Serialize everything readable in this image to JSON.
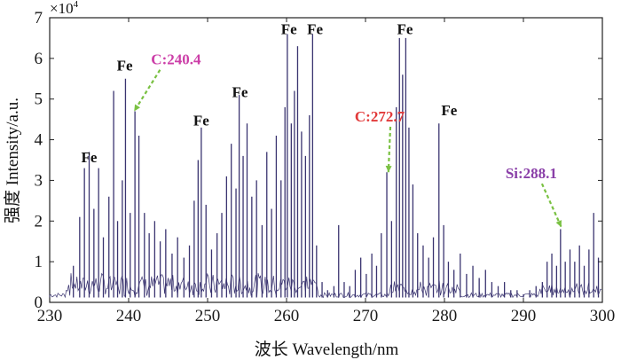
{
  "chart_data": {
    "type": "line",
    "xlabel": "波长 Wavelength/nm",
    "ylabel": "强度 Intensity/a.u.",
    "y_multiplier_label": "×10",
    "y_multiplier_exponent": "4",
    "xlim": [
      230,
      300
    ],
    "ylim": [
      0,
      7
    ],
    "x_ticks": [
      230,
      240,
      250,
      260,
      270,
      280,
      290,
      300
    ],
    "y_ticks": [
      0,
      1,
      2,
      3,
      4,
      5,
      6,
      7
    ],
    "grid": false,
    "line_color": "#3a3470",
    "background_level": 0.12,
    "peaks": [
      {
        "x": 233.0,
        "y": 0.9
      },
      {
        "x": 233.8,
        "y": 2.1
      },
      {
        "x": 234.4,
        "y": 3.3
      },
      {
        "x": 235.0,
        "y": 3.7
      },
      {
        "x": 235.6,
        "y": 2.3
      },
      {
        "x": 236.2,
        "y": 3.3
      },
      {
        "x": 236.8,
        "y": 1.6
      },
      {
        "x": 237.5,
        "y": 2.6
      },
      {
        "x": 238.1,
        "y": 5.2
      },
      {
        "x": 238.6,
        "y": 2.0
      },
      {
        "x": 239.2,
        "y": 3.0
      },
      {
        "x": 239.6,
        "y": 5.5
      },
      {
        "x": 240.2,
        "y": 2.2
      },
      {
        "x": 240.8,
        "y": 4.7
      },
      {
        "x": 241.3,
        "y": 4.1
      },
      {
        "x": 242.0,
        "y": 2.2
      },
      {
        "x": 242.6,
        "y": 1.7
      },
      {
        "x": 243.3,
        "y": 2.0
      },
      {
        "x": 244.0,
        "y": 1.5
      },
      {
        "x": 244.7,
        "y": 1.8
      },
      {
        "x": 245.5,
        "y": 1.2
      },
      {
        "x": 246.2,
        "y": 1.6
      },
      {
        "x": 247.0,
        "y": 1.1
      },
      {
        "x": 247.7,
        "y": 1.4
      },
      {
        "x": 248.3,
        "y": 2.5
      },
      {
        "x": 248.8,
        "y": 3.5
      },
      {
        "x": 249.2,
        "y": 4.3
      },
      {
        "x": 249.8,
        "y": 2.4
      },
      {
        "x": 250.5,
        "y": 1.3
      },
      {
        "x": 251.2,
        "y": 1.7
      },
      {
        "x": 251.8,
        "y": 2.2
      },
      {
        "x": 252.4,
        "y": 3.1
      },
      {
        "x": 253.0,
        "y": 3.9
      },
      {
        "x": 253.6,
        "y": 2.8
      },
      {
        "x": 254.0,
        "y": 5.1
      },
      {
        "x": 254.5,
        "y": 3.6
      },
      {
        "x": 255.0,
        "y": 4.4
      },
      {
        "x": 255.6,
        "y": 2.6
      },
      {
        "x": 256.2,
        "y": 3.0
      },
      {
        "x": 256.9,
        "y": 1.9
      },
      {
        "x": 257.5,
        "y": 3.7
      },
      {
        "x": 258.1,
        "y": 2.3
      },
      {
        "x": 258.7,
        "y": 4.1
      },
      {
        "x": 259.3,
        "y": 3.0
      },
      {
        "x": 259.8,
        "y": 4.8
      },
      {
        "x": 260.1,
        "y": 6.6
      },
      {
        "x": 260.6,
        "y": 4.4
      },
      {
        "x": 261.0,
        "y": 5.2
      },
      {
        "x": 261.4,
        "y": 6.3
      },
      {
        "x": 261.9,
        "y": 4.2
      },
      {
        "x": 262.4,
        "y": 3.6
      },
      {
        "x": 262.9,
        "y": 4.6
      },
      {
        "x": 263.3,
        "y": 6.6
      },
      {
        "x": 263.8,
        "y": 1.4
      },
      {
        "x": 264.5,
        "y": 0.5
      },
      {
        "x": 265.2,
        "y": 0.3
      },
      {
        "x": 266.0,
        "y": 0.4
      },
      {
        "x": 266.6,
        "y": 1.9
      },
      {
        "x": 267.3,
        "y": 0.5
      },
      {
        "x": 268.0,
        "y": 0.4
      },
      {
        "x": 268.7,
        "y": 0.8
      },
      {
        "x": 269.4,
        "y": 1.1
      },
      {
        "x": 270.1,
        "y": 0.7
      },
      {
        "x": 270.8,
        "y": 1.2
      },
      {
        "x": 271.4,
        "y": 0.9
      },
      {
        "x": 272.0,
        "y": 1.7
      },
      {
        "x": 272.7,
        "y": 3.2
      },
      {
        "x": 273.3,
        "y": 2.0
      },
      {
        "x": 273.9,
        "y": 4.8
      },
      {
        "x": 274.3,
        "y": 6.5
      },
      {
        "x": 274.7,
        "y": 5.6
      },
      {
        "x": 275.1,
        "y": 6.5
      },
      {
        "x": 275.5,
        "y": 4.3
      },
      {
        "x": 276.0,
        "y": 2.9
      },
      {
        "x": 276.6,
        "y": 1.7
      },
      {
        "x": 277.3,
        "y": 1.4
      },
      {
        "x": 278.0,
        "y": 1.1
      },
      {
        "x": 278.6,
        "y": 1.6
      },
      {
        "x": 279.3,
        "y": 4.4
      },
      {
        "x": 279.9,
        "y": 1.9
      },
      {
        "x": 280.5,
        "y": 1.0
      },
      {
        "x": 281.2,
        "y": 0.8
      },
      {
        "x": 282.0,
        "y": 1.2
      },
      {
        "x": 282.8,
        "y": 0.7
      },
      {
        "x": 283.6,
        "y": 0.9
      },
      {
        "x": 284.4,
        "y": 0.6
      },
      {
        "x": 285.2,
        "y": 0.8
      },
      {
        "x": 286.0,
        "y": 0.5
      },
      {
        "x": 286.8,
        "y": 0.4
      },
      {
        "x": 287.6,
        "y": 0.5
      },
      {
        "x": 288.4,
        "y": 0.3
      },
      {
        "x": 289.2,
        "y": 0.3
      },
      {
        "x": 290.0,
        "y": 0.2
      },
      {
        "x": 290.8,
        "y": 0.3
      },
      {
        "x": 291.6,
        "y": 0.4
      },
      {
        "x": 292.4,
        "y": 0.5
      },
      {
        "x": 293.0,
        "y": 1.0
      },
      {
        "x": 293.6,
        "y": 1.2
      },
      {
        "x": 294.2,
        "y": 0.9
      },
      {
        "x": 294.7,
        "y": 1.8
      },
      {
        "x": 295.3,
        "y": 1.0
      },
      {
        "x": 295.9,
        "y": 1.3
      },
      {
        "x": 296.5,
        "y": 1.0
      },
      {
        "x": 297.1,
        "y": 1.4
      },
      {
        "x": 297.7,
        "y": 0.9
      },
      {
        "x": 298.3,
        "y": 1.3
      },
      {
        "x": 298.9,
        "y": 2.2
      },
      {
        "x": 299.5,
        "y": 1.1
      }
    ],
    "annotations": [
      {
        "text": "Fe",
        "x": 235.0,
        "y": 3.45,
        "color": "#111111"
      },
      {
        "text": "Fe",
        "x": 239.5,
        "y": 5.7,
        "color": "#111111"
      },
      {
        "text": "C:240.4",
        "x": 246.0,
        "y": 5.85,
        "color": "#cc3fa8",
        "arrow_to": [
          240.7,
          4.7
        ],
        "arrow_color": "#7ac143"
      },
      {
        "text": "Fe",
        "x": 249.2,
        "y": 4.35,
        "color": "#111111"
      },
      {
        "text": "Fe",
        "x": 254.1,
        "y": 5.05,
        "color": "#111111"
      },
      {
        "text": "Fe",
        "x": 260.3,
        "y": 6.6,
        "color": "#111111"
      },
      {
        "text": "Fe",
        "x": 263.6,
        "y": 6.6,
        "color": "#111111"
      },
      {
        "text": "C:272.7",
        "x": 271.8,
        "y": 4.45,
        "color": "#e23a3a",
        "arrow_to": [
          272.9,
          3.2
        ],
        "arrow_color": "#7ac143"
      },
      {
        "text": "Fe",
        "x": 275.0,
        "y": 6.6,
        "color": "#111111"
      },
      {
        "text": "Fe",
        "x": 280.6,
        "y": 4.6,
        "color": "#111111"
      },
      {
        "text": "Si:288.1",
        "x": 291.0,
        "y": 3.05,
        "color": "#8a3fa8",
        "arrow_to": [
          294.8,
          1.85
        ],
        "arrow_color": "#7ac143"
      }
    ]
  }
}
